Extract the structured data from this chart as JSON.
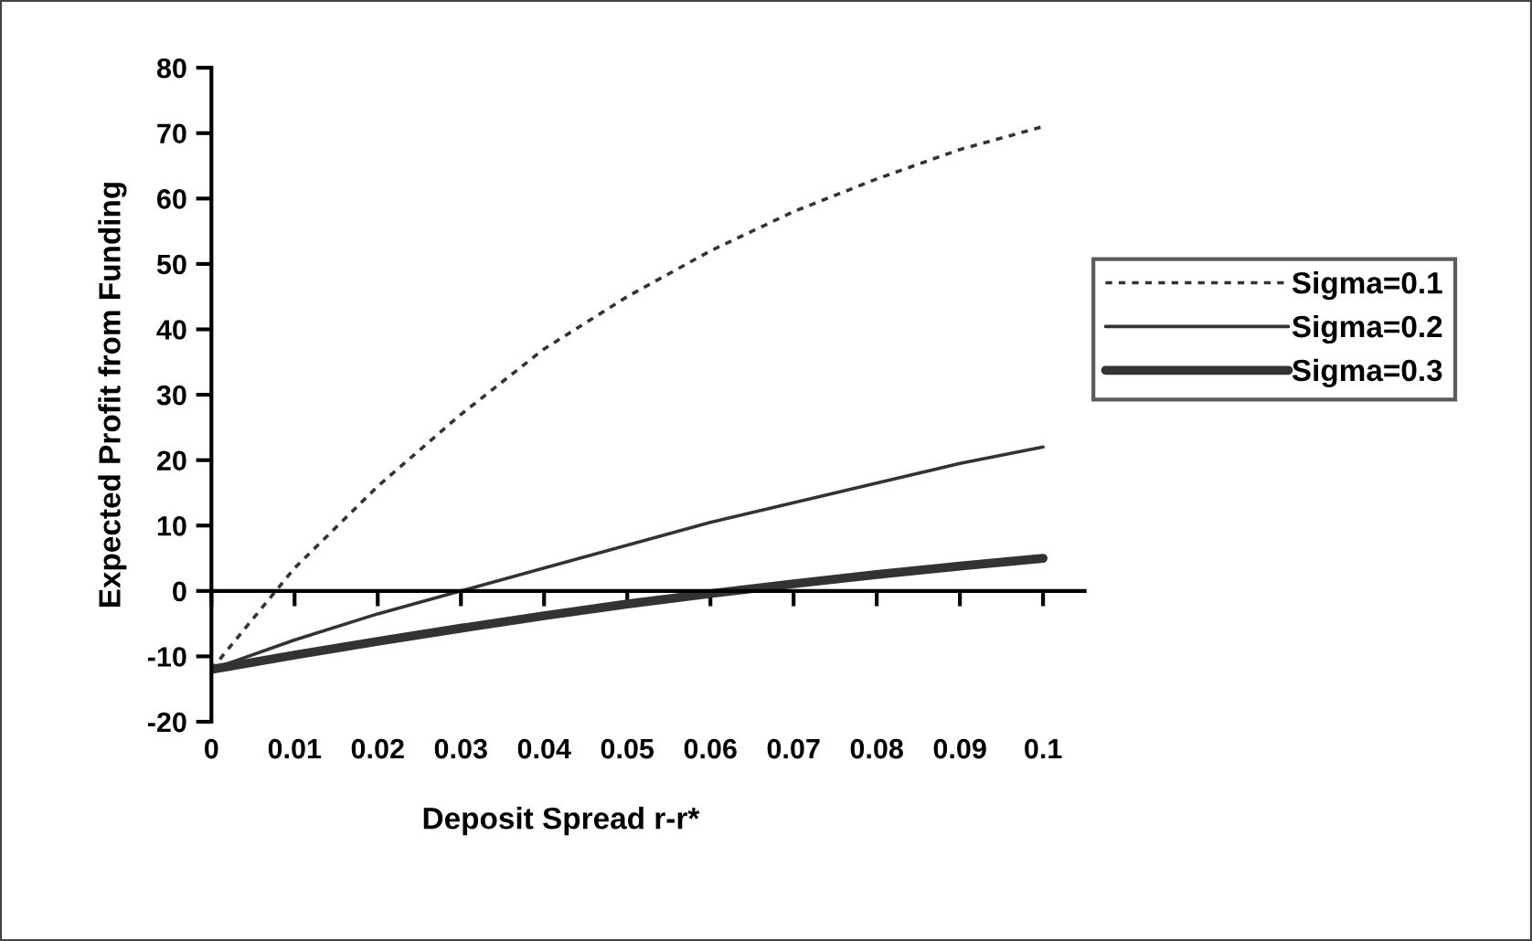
{
  "chart_data": {
    "type": "line",
    "xlabel": "Deposit Spread r-r*",
    "ylabel": "Expected Profit from Funding",
    "x": [
      0,
      0.01,
      0.02,
      0.03,
      0.04,
      0.05,
      0.06,
      0.07,
      0.08,
      0.09,
      0.1
    ],
    "xlim": [
      0,
      0.105
    ],
    "xticks": [
      0,
      0.01,
      0.02,
      0.03,
      0.04,
      0.05,
      0.06,
      0.07,
      0.08,
      0.09,
      0.1
    ],
    "ylim": [
      -20,
      80
    ],
    "yticks": [
      -20,
      -10,
      0,
      10,
      20,
      30,
      40,
      50,
      60,
      70,
      80
    ],
    "legend": "right",
    "marker": "none",
    "series": [
      {
        "name": "Sigma=0.1",
        "color": "#333333",
        "line_style": "dotted",
        "values": [
          -12,
          3.5,
          16,
          27,
          37,
          45,
          52,
          58,
          63,
          67.5,
          71
        ]
      },
      {
        "name": "Sigma=0.2",
        "color": "#333333",
        "line_style": "solid",
        "values": [
          -12,
          -7.5,
          -3.5,
          0,
          3.5,
          7,
          10.5,
          13.5,
          16.5,
          19.5,
          22
        ]
      },
      {
        "name": "Sigma=0.3",
        "color": "#333333",
        "line_style": "solid",
        "values": [
          -12,
          -9.8,
          -7.7,
          -5.7,
          -3.8,
          -2,
          -0.4,
          1.1,
          2.5,
          3.8,
          5
        ]
      }
    ]
  }
}
